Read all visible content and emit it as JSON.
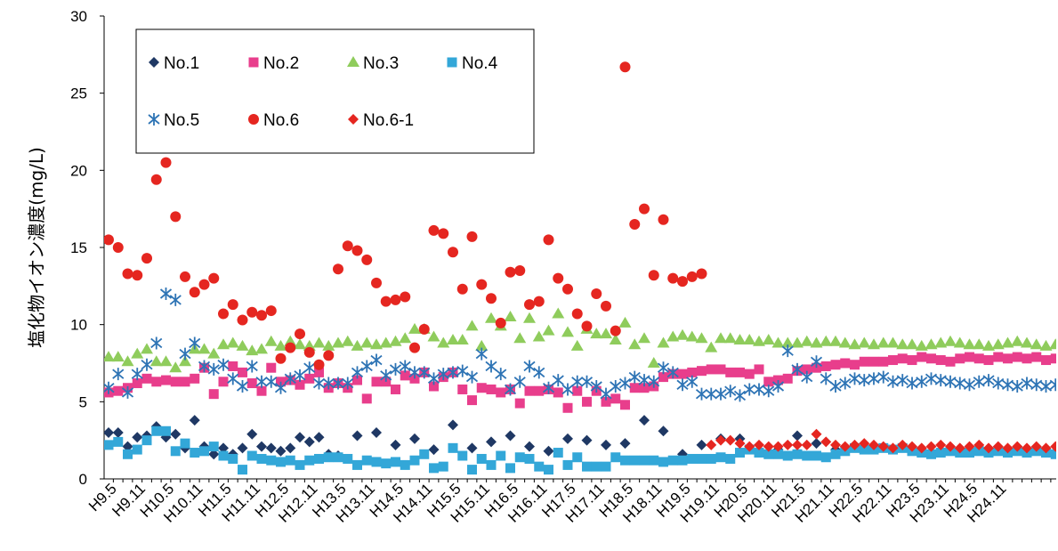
{
  "chart_data": {
    "type": "scatter",
    "ylabel": "塩化物イオン濃度(mg/L)",
    "xlabel": "",
    "ylim": [
      0,
      30
    ],
    "yticks": [
      0,
      5,
      10,
      15,
      20,
      25,
      30
    ],
    "x_tick_labels": [
      "H9.5",
      "H9.11",
      "H10.5",
      "H10.11",
      "H11.5",
      "H11.11",
      "H12.5",
      "H12.11",
      "H13.5",
      "H13.11",
      "H14.5",
      "H14.11",
      "H15.5",
      "H15.11",
      "H16.5",
      "H16.11",
      "H17.5",
      "H17.11",
      "H18.5",
      "H18.11",
      "H19.5",
      "H19.11",
      "H20.5",
      "H20.11",
      "H21.5",
      "H21.11",
      "H22.5",
      "H22.11",
      "H23.5",
      "H23.11",
      "H24.5",
      "H24.11"
    ],
    "x_note": "x values are sampling points ordered in time; index 0 = H9.5, index 3 = H9.11 (sampling approx. every 2 months); integer labels every 3rd point",
    "grid": false,
    "legend_position": "top-left inside",
    "series": [
      {
        "name": "No.1",
        "color": "#1f3864",
        "marker": "diamond",
        "x": [
          0,
          1,
          2,
          3,
          4,
          5,
          6,
          7,
          8,
          9,
          10,
          11,
          12,
          13,
          14,
          15,
          16,
          17,
          18,
          19,
          20,
          21,
          22,
          23,
          24,
          26,
          28,
          30,
          32,
          34,
          36,
          38,
          40,
          42,
          44,
          46,
          48,
          50,
          52,
          54,
          56,
          58,
          60,
          62,
          64,
          66,
          68,
          70,
          72,
          74,
          76
        ],
        "y": [
          3.0,
          3.0,
          2.1,
          2.7,
          2.8,
          3.4,
          2.7,
          2.9,
          2.0,
          3.8,
          2.1,
          1.6,
          2.0,
          1.6,
          2.0,
          2.9,
          2.1,
          2.0,
          1.8,
          2.0,
          2.7,
          2.4,
          2.7,
          1.6,
          1.5,
          2.8,
          3.0,
          2.2,
          2.6,
          1.9,
          3.5,
          2.0,
          2.4,
          2.8,
          2.1,
          1.8,
          2.6,
          2.5,
          2.2,
          2.3,
          3.8,
          3.1,
          1.6,
          2.2,
          2.6,
          2.6,
          1.8,
          1.9,
          2.8,
          2.3,
          1.9
        ]
      },
      {
        "name": "No.2",
        "color": "#e83e8c",
        "marker": "square",
        "x": [
          0,
          1,
          2,
          3,
          4,
          5,
          6,
          7,
          8,
          9,
          10,
          11,
          12,
          13,
          14,
          15,
          16,
          17,
          18,
          19,
          20,
          21,
          22,
          23,
          24,
          25,
          26,
          27,
          28,
          29,
          30,
          31,
          32,
          33,
          34,
          35,
          36,
          37,
          38,
          39,
          40,
          41,
          42,
          43,
          44,
          45,
          46,
          47,
          48,
          49,
          50,
          51,
          52,
          53,
          54,
          55,
          56,
          57,
          58,
          59,
          60,
          61,
          62,
          63,
          64,
          65,
          66,
          67,
          68,
          69,
          70,
          71,
          72,
          73,
          74,
          75,
          76,
          77,
          78,
          79,
          80,
          81,
          82,
          83,
          84,
          85,
          86,
          87,
          88,
          89,
          90,
          91,
          92,
          93,
          94,
          95,
          96,
          97,
          98,
          99,
          100,
          101
        ],
        "y": [
          5.6,
          5.7,
          5.9,
          6.2,
          6.5,
          6.3,
          6.4,
          6.3,
          6.3,
          6.5,
          7.2,
          5.5,
          6.3,
          7.3,
          6.9,
          6.2,
          5.7,
          7.2,
          6.3,
          6.4,
          6.1,
          6.5,
          6.9,
          5.9,
          6.2,
          5.9,
          6.4,
          5.2,
          6.3,
          6.3,
          5.8,
          6.7,
          6.5,
          6.9,
          6.0,
          6.6,
          6.9,
          5.8,
          5.1,
          5.9,
          5.8,
          5.6,
          5.8,
          4.9,
          5.7,
          5.7,
          5.8,
          5.6,
          4.6,
          5.7,
          5.0,
          5.7,
          5.0,
          5.2,
          4.8,
          5.9,
          5.9,
          6.0,
          6.6,
          6.8,
          6.8,
          6.9,
          7.0,
          7.1,
          7.1,
          6.9,
          6.9,
          6.8,
          7.1,
          6.3,
          6.4,
          6.5,
          7.0,
          7.1,
          7.2,
          7.3,
          7.4,
          7.5,
          7.4,
          7.6,
          7.6,
          7.6,
          7.7,
          7.8,
          7.7,
          7.9,
          7.8,
          7.7,
          7.6,
          7.8,
          7.9,
          7.8,
          7.7,
          7.9,
          7.8,
          7.9,
          7.8,
          7.9,
          7.7,
          7.8,
          7.8,
          7.8
        ]
      },
      {
        "name": "No.3",
        "color": "#8fcc5c",
        "marker": "triangle",
        "x": [
          0,
          1,
          2,
          3,
          4,
          5,
          6,
          7,
          8,
          9,
          10,
          11,
          12,
          13,
          14,
          15,
          16,
          17,
          18,
          19,
          20,
          21,
          22,
          23,
          24,
          25,
          26,
          27,
          28,
          29,
          30,
          31,
          32,
          33,
          34,
          35,
          36,
          37,
          38,
          39,
          40,
          41,
          42,
          43,
          44,
          45,
          46,
          47,
          48,
          49,
          50,
          51,
          52,
          53,
          54,
          55,
          56,
          57,
          58,
          59,
          60,
          61,
          62,
          63,
          64,
          65,
          66,
          67,
          68,
          69,
          70,
          71,
          72,
          73,
          74,
          75,
          76,
          77,
          78,
          79,
          80,
          81,
          82,
          83,
          84,
          85,
          86,
          87,
          88,
          89,
          90,
          91,
          92,
          93,
          94,
          95,
          96,
          97,
          98,
          99,
          100,
          101
        ],
        "y": [
          7.9,
          7.9,
          7.6,
          8.1,
          8.4,
          7.6,
          7.6,
          7.2,
          7.6,
          8.4,
          8.4,
          8.1,
          8.7,
          8.8,
          8.6,
          8.3,
          8.4,
          8.9,
          8.6,
          8.9,
          8.7,
          8.6,
          8.8,
          8.6,
          8.8,
          8.9,
          8.6,
          8.8,
          8.7,
          8.8,
          8.9,
          9.1,
          9.7,
          9.7,
          9.2,
          8.8,
          9.0,
          9.0,
          9.9,
          8.6,
          10.4,
          9.9,
          10.5,
          9.1,
          10.4,
          9.2,
          9.6,
          10.7,
          9.5,
          8.6,
          9.7,
          9.4,
          9.4,
          9.0,
          10.1,
          8.7,
          9.1,
          7.5,
          8.8,
          9.2,
          9.3,
          9.2,
          9.1,
          8.5,
          9.1,
          9.1,
          9.0,
          9.0,
          8.9,
          9.0,
          8.8,
          8.8,
          8.8,
          8.9,
          8.8,
          8.9,
          8.9,
          8.8,
          8.7,
          8.8,
          8.7,
          8.8,
          8.8,
          8.7,
          8.7,
          8.6,
          8.7,
          8.8,
          8.9,
          8.8,
          8.7,
          8.7,
          8.6,
          8.7,
          8.8,
          8.9,
          8.8,
          8.7,
          8.6,
          8.7,
          8.8,
          8.7
        ]
      },
      {
        "name": "No.4",
        "color": "#33a7d8",
        "marker": "square",
        "x": [
          0,
          1,
          2,
          3,
          4,
          5,
          6,
          7,
          8,
          9,
          10,
          11,
          12,
          13,
          14,
          15,
          16,
          17,
          18,
          19,
          20,
          21,
          22,
          23,
          24,
          25,
          26,
          27,
          28,
          29,
          30,
          31,
          32,
          33,
          34,
          35,
          36,
          37,
          38,
          39,
          40,
          41,
          42,
          43,
          44,
          45,
          46,
          47,
          48,
          49,
          50,
          51,
          52,
          53,
          54,
          55,
          56,
          57,
          58,
          59,
          60,
          61,
          62,
          63,
          64,
          65,
          66,
          67,
          68,
          69,
          70,
          71,
          72,
          73,
          74,
          75,
          76,
          77,
          78,
          79,
          80,
          81,
          82,
          83,
          84,
          85,
          86,
          87,
          88,
          89,
          90,
          91,
          92,
          93,
          94,
          95,
          96,
          97,
          98,
          99,
          100,
          101
        ],
        "y": [
          2.2,
          2.4,
          1.6,
          1.9,
          2.5,
          3.1,
          3.1,
          1.8,
          2.3,
          1.7,
          1.8,
          2.1,
          1.5,
          1.3,
          0.6,
          1.5,
          1.3,
          1.2,
          1.1,
          1.2,
          0.9,
          1.2,
          1.3,
          1.4,
          1.4,
          1.3,
          0.9,
          1.2,
          1.1,
          1.0,
          1.1,
          0.9,
          1.2,
          1.6,
          0.7,
          0.8,
          2.0,
          1.5,
          0.6,
          1.3,
          0.9,
          1.5,
          0.7,
          1.4,
          1.3,
          0.8,
          0.6,
          1.7,
          0.9,
          1.4,
          0.8,
          0.8,
          0.8,
          1.4,
          1.2,
          1.2,
          1.2,
          1.2,
          1.1,
          1.2,
          1.2,
          1.3,
          1.3,
          1.3,
          1.4,
          1.3,
          1.7,
          1.9,
          1.7,
          1.6,
          1.6,
          1.5,
          1.6,
          1.5,
          1.5,
          1.4,
          1.6,
          1.8,
          2.0,
          1.9,
          1.9,
          2.0,
          1.9,
          2.0,
          1.8,
          1.7,
          1.6,
          1.7,
          1.8,
          1.7,
          1.7,
          1.8,
          1.7,
          1.8,
          1.7,
          1.8,
          1.7,
          1.8,
          1.7,
          1.6,
          1.7,
          1.7
        ]
      },
      {
        "name": "No.5",
        "color": "#2e74b5",
        "marker": "asterisk",
        "x": [
          0,
          1,
          2,
          3,
          4,
          5,
          6,
          7,
          8,
          9,
          10,
          11,
          12,
          13,
          14,
          15,
          16,
          17,
          18,
          19,
          20,
          21,
          22,
          23,
          24,
          25,
          26,
          27,
          28,
          29,
          30,
          31,
          32,
          33,
          34,
          35,
          36,
          37,
          38,
          39,
          40,
          41,
          42,
          43,
          44,
          45,
          46,
          47,
          48,
          49,
          50,
          51,
          52,
          53,
          54,
          55,
          56,
          57,
          58,
          59,
          60,
          61,
          62,
          63,
          64,
          65,
          66,
          67,
          68,
          69,
          70,
          71,
          72,
          73,
          74,
          75,
          76,
          77,
          78,
          79,
          80,
          81,
          82,
          83,
          84,
          85,
          86,
          87,
          88,
          89,
          90,
          91,
          92,
          93,
          94,
          95,
          96,
          97,
          98,
          99,
          100,
          101
        ],
        "y": [
          5.9,
          6.8,
          5.6,
          6.8,
          7.4,
          8.8,
          12.0,
          11.6,
          8.1,
          8.8,
          7.3,
          7.1,
          7.4,
          6.5,
          6.0,
          7.3,
          6.3,
          6.3,
          5.9,
          6.5,
          6.7,
          7.2,
          6.2,
          6.2,
          6.2,
          6.2,
          6.9,
          7.3,
          7.7,
          6.7,
          7.1,
          7.3,
          6.9,
          6.9,
          6.5,
          6.8,
          6.9,
          7.0,
          6.6,
          8.1,
          7.3,
          6.8,
          5.8,
          6.3,
          7.3,
          6.9,
          5.9,
          6.4,
          5.8,
          6.3,
          6.3,
          6.0,
          5.5,
          6.0,
          6.2,
          6.6,
          6.4,
          6.3,
          7.2,
          6.9,
          6.1,
          6.3,
          5.5,
          5.5,
          5.5,
          5.7,
          5.4,
          5.8,
          5.8,
          5.7,
          6.0,
          8.3,
          7.1,
          6.6,
          7.6,
          6.5,
          6.0,
          6.2,
          6.5,
          6.4,
          6.5,
          6.6,
          6.3,
          6.4,
          6.2,
          6.3,
          6.5,
          6.4,
          6.3,
          6.2,
          6.1,
          6.3,
          6.4,
          6.2,
          6.1,
          6.0,
          6.2,
          6.1,
          6.0,
          6.1,
          6.2,
          6.0
        ]
      },
      {
        "name": "No.6",
        "color": "#e52620",
        "marker": "circle",
        "x": [
          0,
          1,
          2,
          3,
          4,
          5,
          6,
          7,
          8,
          9,
          10,
          11,
          12,
          13,
          14,
          15,
          16,
          17,
          18,
          19,
          20,
          21,
          22,
          23,
          24,
          25,
          26,
          27,
          28,
          29,
          30,
          31,
          32,
          33,
          34,
          35,
          36,
          37,
          38,
          39,
          40,
          41,
          42,
          43,
          44,
          45,
          46,
          47,
          48,
          49,
          50,
          51,
          52,
          53,
          54,
          55,
          56,
          57,
          58,
          59,
          60,
          61,
          62
        ],
        "y": [
          15.5,
          15.0,
          13.3,
          13.2,
          14.3,
          19.4,
          20.5,
          17.0,
          13.1,
          12.1,
          12.6,
          13.0,
          10.7,
          11.3,
          10.3,
          10.8,
          10.6,
          10.9,
          7.8,
          8.5,
          9.4,
          8.2,
          7.4,
          8.0,
          13.6,
          15.1,
          14.8,
          14.2,
          12.7,
          11.5,
          11.6,
          11.8,
          8.5,
          9.7,
          16.1,
          15.9,
          14.7,
          12.3,
          15.7,
          12.6,
          11.7,
          10.1,
          13.4,
          13.5,
          11.3,
          11.5,
          15.5,
          13.0,
          12.3,
          10.7,
          9.9,
          12.0,
          11.2,
          9.6,
          26.7,
          16.5,
          17.5,
          13.2,
          16.8,
          13.0,
          12.8,
          13.1,
          13.3
        ]
      },
      {
        "name": "No.6-1",
        "color": "#e52620",
        "marker": "diamond",
        "x": [
          63,
          64,
          65,
          66,
          67,
          68,
          69,
          70,
          71,
          72,
          73,
          74,
          75,
          76,
          77,
          78,
          79,
          80,
          81,
          82,
          83,
          84,
          85,
          86,
          87,
          88,
          89,
          90,
          91,
          92,
          93,
          94,
          95,
          96,
          97,
          98,
          99,
          100,
          101
        ],
        "y": [
          2.2,
          2.5,
          2.5,
          2.3,
          2.1,
          2.2,
          2.1,
          2.1,
          2.2,
          2.2,
          2.2,
          2.9,
          2.4,
          2.2,
          2.1,
          2.2,
          2.3,
          2.2,
          2.1,
          2.0,
          2.2,
          2.1,
          2.0,
          2.1,
          2.2,
          2.1,
          2.0,
          2.1,
          2.2,
          2.0,
          2.1,
          2.0,
          2.1,
          2.0,
          2.1,
          2.0,
          2.1,
          2.0,
          2.1
        ]
      }
    ]
  }
}
